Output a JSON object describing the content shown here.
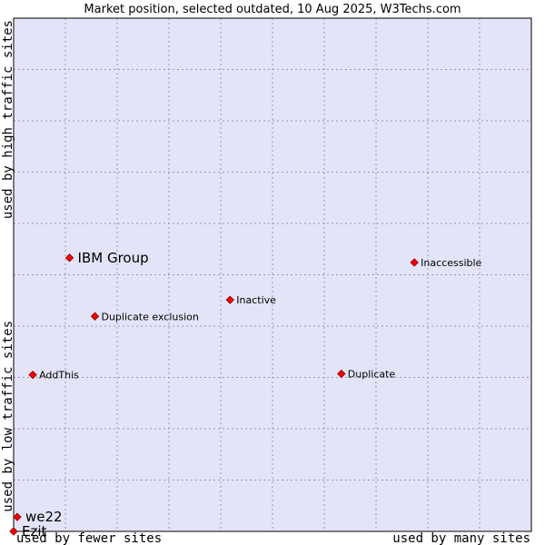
{
  "chart_data": {
    "type": "scatter",
    "title": "Market position, selected outdated, 10 Aug 2025, W3Techs.com",
    "xlabel_left": "used by fewer sites",
    "xlabel_right": "used by many sites",
    "ylabel_bottom": "used by low traffic sites",
    "ylabel_top": "used by high traffic sites",
    "xlim": [
      0,
      100
    ],
    "ylim": [
      0,
      100
    ],
    "grid": true,
    "colors": {
      "plot_bg": "#e4e4f8",
      "grid": "#9a9ab0",
      "point_fill": "#ff0000",
      "point_stroke": "#990000",
      "frame": "#000000"
    },
    "points": [
      {
        "label": "IBM Group",
        "x": 10.8,
        "y": 53.3,
        "highlight": true
      },
      {
        "label": "Inaccessible",
        "x": 77.4,
        "y": 52.4,
        "highlight": false
      },
      {
        "label": "Inactive",
        "x": 41.8,
        "y": 45.1,
        "highlight": false
      },
      {
        "label": "Duplicate exclusion",
        "x": 15.7,
        "y": 41.9,
        "highlight": false
      },
      {
        "label": "AddThis",
        "x": 3.7,
        "y": 30.5,
        "highlight": false
      },
      {
        "label": "Duplicate",
        "x": 63.3,
        "y": 30.7,
        "highlight": false
      },
      {
        "label": "we22",
        "x": 0.7,
        "y": 2.8,
        "highlight": true
      },
      {
        "label": "Ezit",
        "x": 0.0,
        "y": 0.0,
        "highlight": true
      }
    ]
  }
}
